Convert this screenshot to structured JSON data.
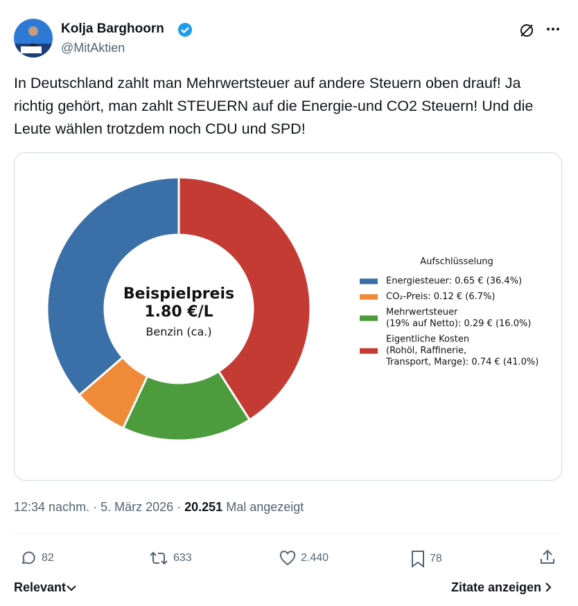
{
  "author": {
    "name": "Kolja Barghoorn",
    "handle": "@MitAktien"
  },
  "tweet_text": "In Deutschland zahlt man Mehrwertsteuer auf andere Steuern oben drauf! Ja richtig gehört, man zahlt STEUERN auf die Energie-und CO2 Steuern! Und die Leute wählen trotzdem noch CDU und SPD!",
  "meta": {
    "time": "12:34 nachm. · 5. März 2026 · ",
    "views": "20.251",
    "views_label": "Mal angezeigt"
  },
  "actions": {
    "replies": "82",
    "reposts": "633",
    "likes": "2.440",
    "bookmarks": "78"
  },
  "footer": {
    "sort": "Relevant",
    "quotes": "Zitate anzeigen"
  },
  "chart_data": {
    "type": "pie",
    "donut": true,
    "annotations": [
      "Beispielpreis",
      "1.80 €/L",
      "Benzin (ca.)"
    ],
    "legend_title": "Aufschlüsselung",
    "categories": [
      [
        "Energiesteuer: 0.65 €  (36.4%)"
      ],
      [
        "CO₂-Preis: 0.12 €  (6.7%)"
      ],
      [
        "Mehrwertsteuer",
        "(19% auf Netto): 0.29 €  (16.0%)"
      ],
      [
        "Eigentliche Kosten",
        "(Rohöl, Raffinerie,",
        "Transport, Marge): 0.74 €  (41.0%)"
      ]
    ],
    "values": [
      36.4,
      6.7,
      16.0,
      41.0
    ],
    "colors": [
      "#3b6fa8",
      "#ee8a38",
      "#4c9c3d",
      "#c33b33"
    ],
    "legend": "right"
  }
}
